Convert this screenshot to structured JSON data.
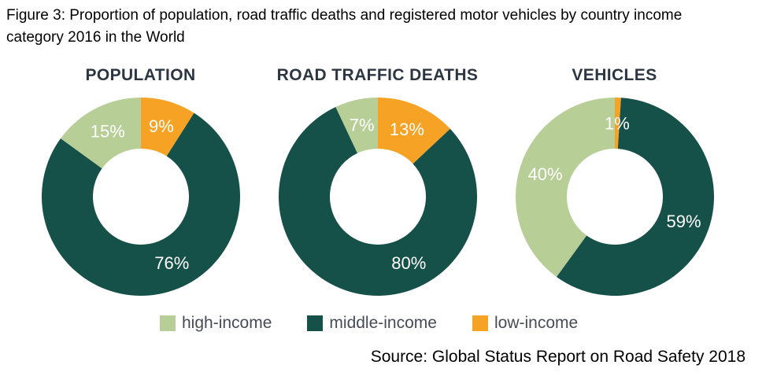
{
  "figure": {
    "caption_line1": "Figure 3: Proportion of population, road traffic deaths and registered motor vehicles by country income",
    "caption_line2": "category 2016 in the World",
    "source": "Source: Global Status Report on Road Safety 2018"
  },
  "chart_data": {
    "type": "pie",
    "subtype": "donut",
    "value_unit": "%",
    "legend_position": "bottom",
    "categories": [
      "high-income",
      "middle-income",
      "low-income"
    ],
    "category_colors": {
      "high-income": "#b7cf96",
      "middle-income": "#165149",
      "low-income": "#f6a325"
    },
    "draw_order_clockwise_from_top": [
      "low-income",
      "middle-income",
      "high-income"
    ],
    "charts": [
      {
        "title": "POPULATION",
        "values": {
          "high-income": 15,
          "middle-income": 76,
          "low-income": 9
        }
      },
      {
        "title": "ROAD TRAFFIC DEATHS",
        "values": {
          "high-income": 7,
          "middle-income": 80,
          "low-income": 13
        }
      },
      {
        "title": "VEHICLES",
        "values": {
          "high-income": 40,
          "middle-income": 59,
          "low-income": 1
        }
      }
    ],
    "legend": [
      {
        "label": "high-income",
        "color": "#b7cf96"
      },
      {
        "label": "middle-income",
        "color": "#165149"
      },
      {
        "label": "low-income",
        "color": "#f6a325"
      }
    ]
  }
}
